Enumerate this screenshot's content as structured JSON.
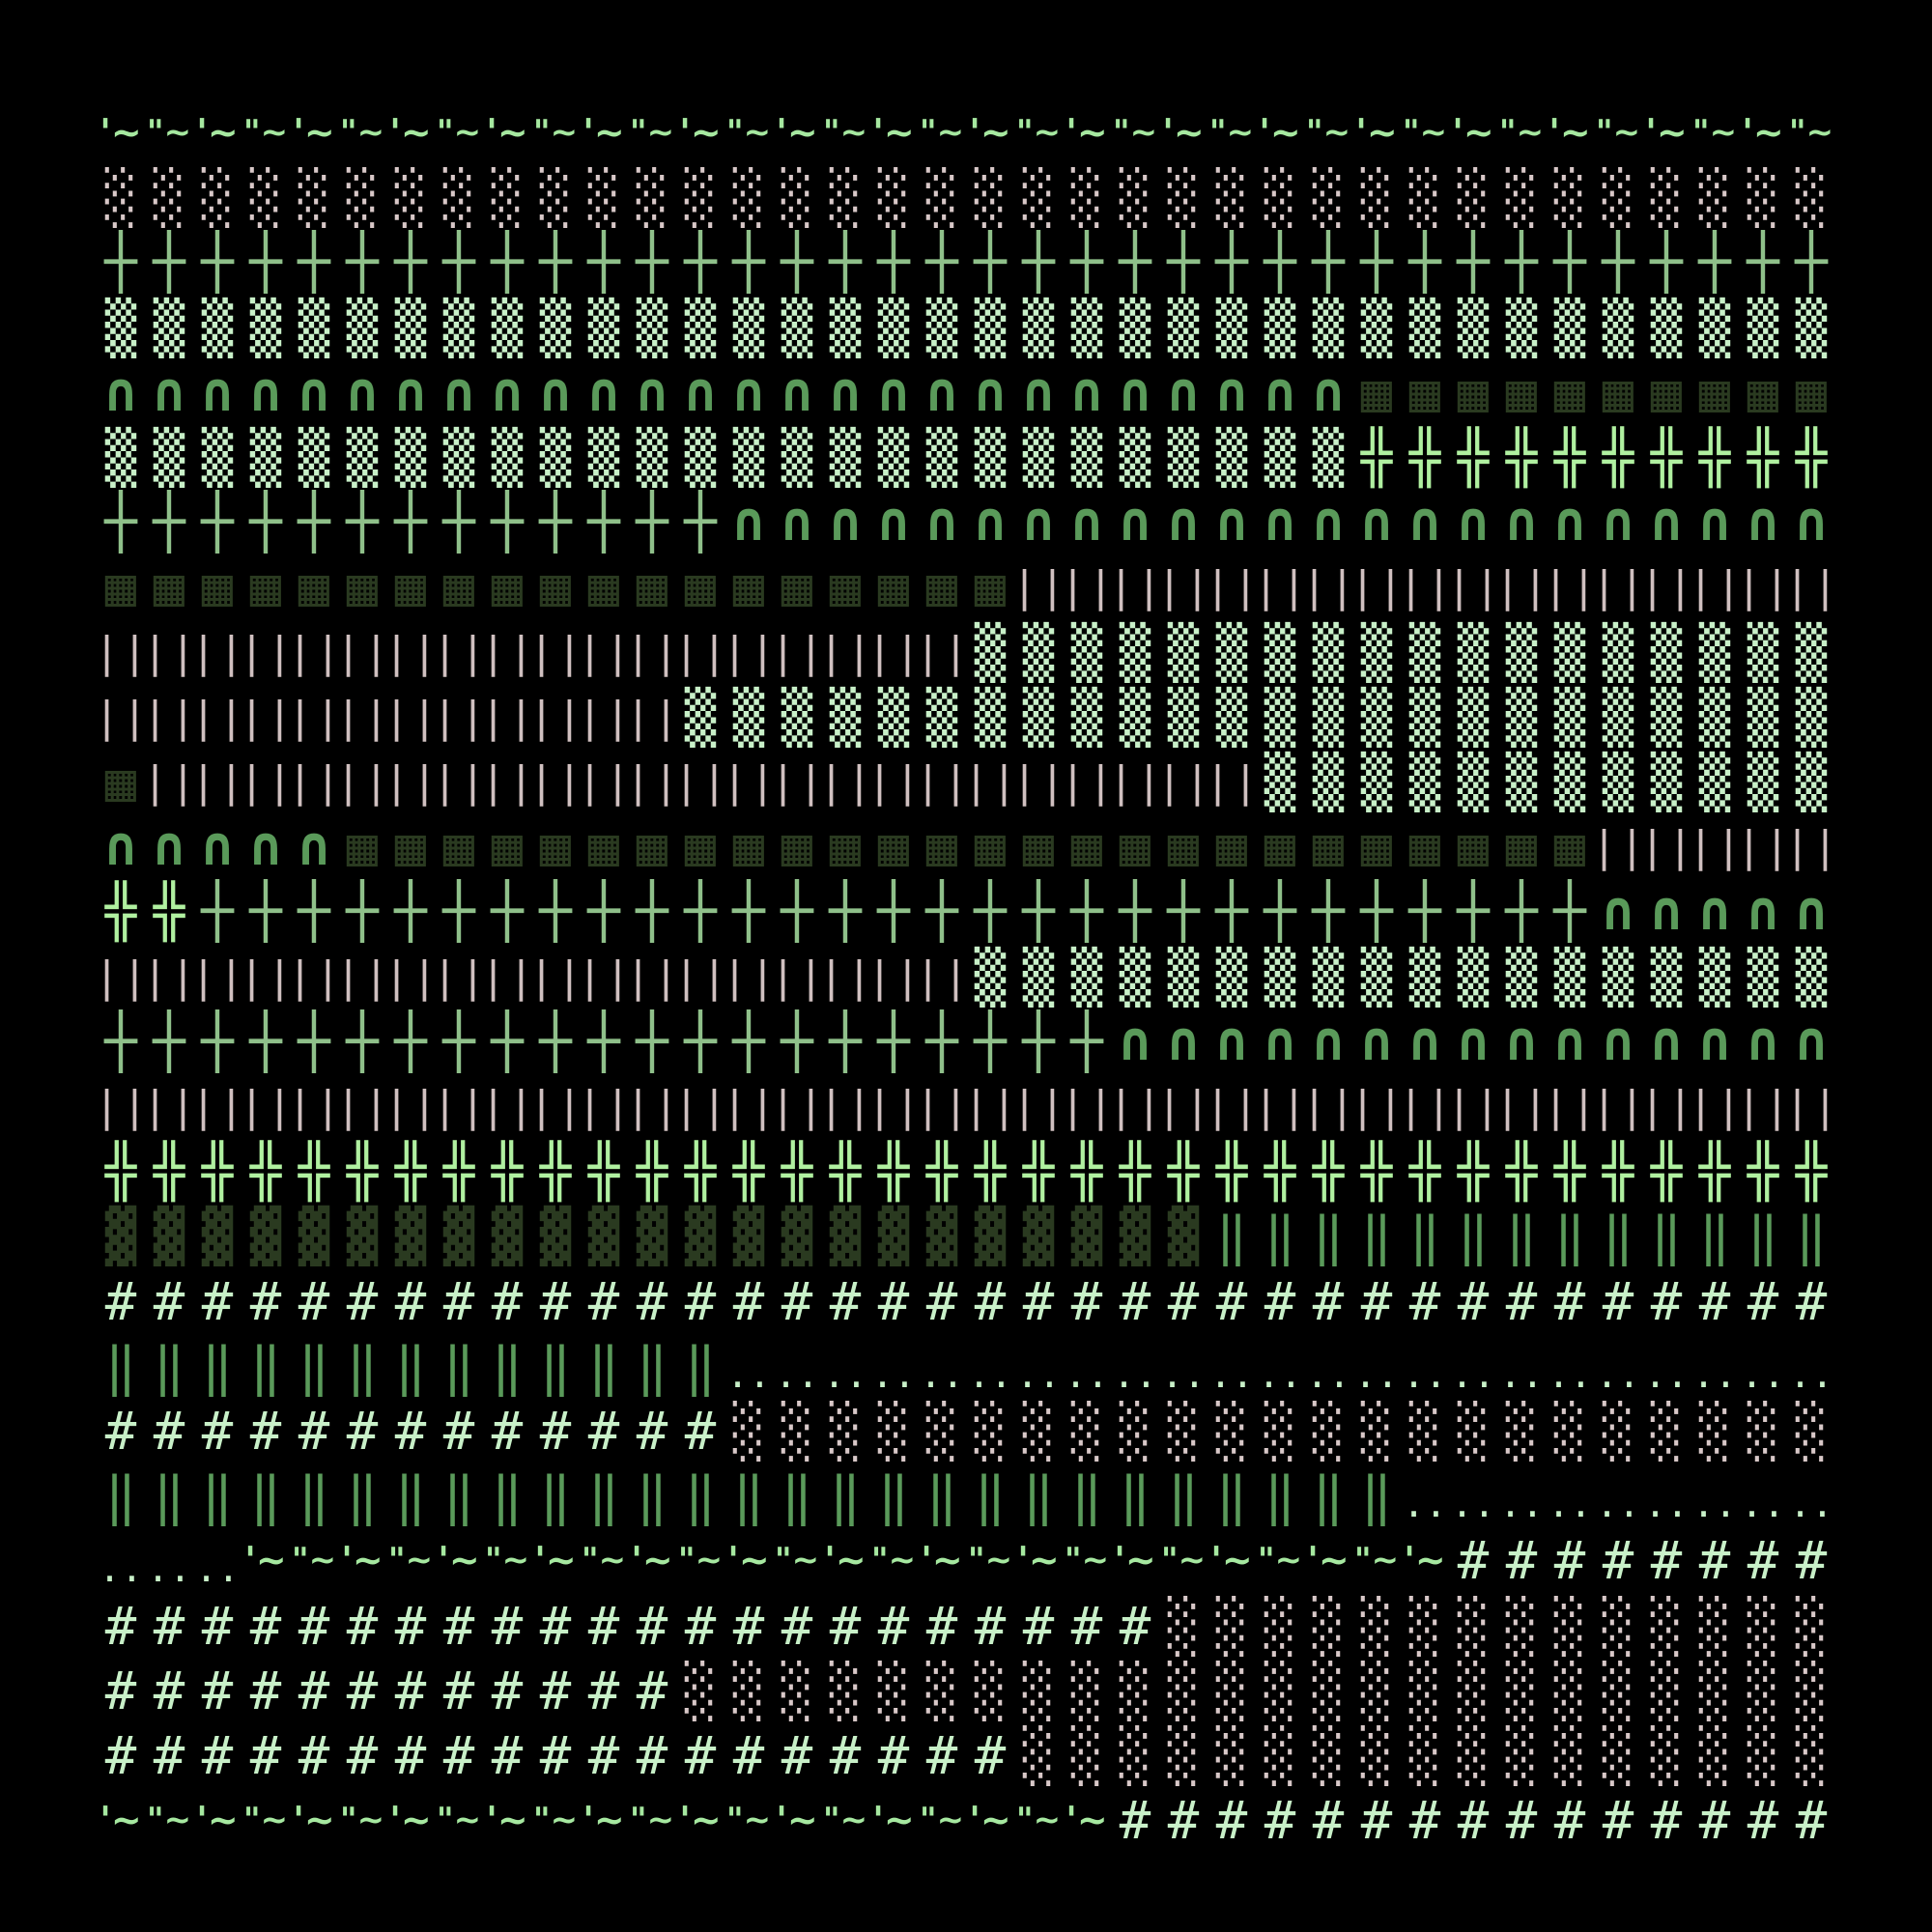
{
  "glyph_types": {
    "A": {
      "units": [
        "'~",
        "\"~"
      ],
      "color": "#a6e8a0",
      "name": "quote-tilde"
    },
    "B": {
      "units": [
        "░"
      ],
      "color": "#d8c8c8",
      "name": "light-shade"
    },
    "C": {
      "units": [
        "┼"
      ],
      "color": "#8fc08a",
      "name": "dotted-cross"
    },
    "D": {
      "units": [
        "▒"
      ],
      "color": "#c8f0c8",
      "name": "medium-shade"
    },
    "E": {
      "units": [
        "∩"
      ],
      "color": "#5a9a5a",
      "name": "arch"
    },
    "F": {
      "units": [
        "▦"
      ],
      "color": "#2a3a20",
      "name": "grid-box"
    },
    "G": {
      "units": [
        "╬"
      ],
      "color": "#b0f0a0",
      "name": "double-cross"
    },
    "H": {
      "units": [
        "| |"
      ],
      "color": "#d0c0c0",
      "name": "bars"
    },
    "I": {
      "units": [
        "▓"
      ],
      "color": "#2a3a20",
      "name": "dark-shade"
    },
    "J": {
      "units": [
        "‖"
      ],
      "color": "#5a9a5a",
      "name": "double-bar"
    },
    "K": {
      "units": [
        "#"
      ],
      "color": "#c8f0c8",
      "name": "hash"
    },
    "L": {
      "units": [
        ".."
      ],
      "color": "#c8f0c8",
      "name": "dots"
    }
  },
  "rows": [
    [
      [
        "A",
        36
      ]
    ],
    [
      [
        "B",
        36
      ]
    ],
    [
      [
        "C",
        36
      ]
    ],
    [
      [
        "D",
        36
      ]
    ],
    [
      [
        "E",
        26
      ],
      [
        "F",
        10
      ]
    ],
    [
      [
        "D",
        26
      ],
      [
        "G",
        10
      ]
    ],
    [
      [
        "C",
        13
      ],
      [
        "E",
        23
      ]
    ],
    [
      [
        "F",
        19
      ],
      [
        "H",
        17
      ]
    ],
    [
      [
        "H",
        18
      ],
      [
        "D",
        18
      ]
    ],
    [
      [
        "H",
        12
      ],
      [
        "D",
        24
      ]
    ],
    [
      [
        "F",
        1
      ],
      [
        "H",
        23
      ],
      [
        "D",
        12
      ]
    ],
    [
      [
        "E",
        5
      ],
      [
        "F",
        26
      ],
      [
        "H",
        5
      ]
    ],
    [
      [
        "G",
        2
      ],
      [
        "C",
        29
      ],
      [
        "E",
        5
      ]
    ],
    [
      [
        "H",
        18
      ],
      [
        "D",
        18
      ]
    ],
    [
      [
        "C",
        21
      ],
      [
        "E",
        15
      ]
    ],
    [
      [
        "H",
        36
      ]
    ],
    [
      [
        "G",
        36
      ]
    ],
    [
      [
        "I",
        23
      ],
      [
        "J",
        13
      ]
    ],
    [
      [
        "K",
        36
      ]
    ],
    [
      [
        "J",
        13
      ],
      [
        "L",
        23
      ]
    ],
    [
      [
        "K",
        13
      ],
      [
        "B",
        23
      ]
    ],
    [
      [
        "J",
        27
      ],
      [
        "L",
        9
      ]
    ],
    [
      [
        "L",
        3
      ],
      [
        "A",
        25
      ],
      [
        "K",
        8
      ]
    ],
    [
      [
        "K",
        22
      ],
      [
        "B",
        14
      ]
    ],
    [
      [
        "K",
        12
      ],
      [
        "B",
        24
      ]
    ],
    [
      [
        "K",
        19
      ],
      [
        "B",
        17
      ]
    ],
    [
      [
        "A",
        21
      ],
      [
        "K",
        15
      ]
    ]
  ]
}
